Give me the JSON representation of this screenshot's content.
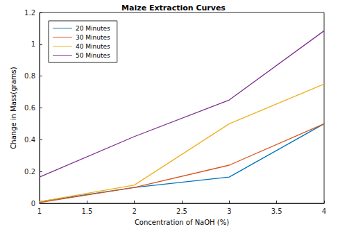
{
  "chart_data": {
    "type": "line",
    "title": "Maize Extraction Curves",
    "x_label": "Concentration of NaOH (%)",
    "y_label": "Change in Mass(grams)",
    "x": [
      1,
      2,
      3,
      4
    ],
    "series": [
      {
        "name": "20 Minutes",
        "color": "#0072BD",
        "values": [
          0.01,
          0.1,
          0.165,
          0.5
        ]
      },
      {
        "name": "30 Minutes",
        "color": "#D95319",
        "values": [
          0.005,
          0.1,
          0.24,
          0.5
        ]
      },
      {
        "name": "40 Minutes",
        "color": "#EDB120",
        "values": [
          0.01,
          0.115,
          0.5,
          0.75
        ]
      },
      {
        "name": "50 Minutes",
        "color": "#7E2F8E",
        "values": [
          0.165,
          0.42,
          0.65,
          1.085
        ]
      }
    ],
    "xlim": [
      1,
      4
    ],
    "xticks": [
      1,
      1.5,
      2,
      2.5,
      3,
      3.5,
      4
    ],
    "ylim": [
      0,
      1.2
    ],
    "yticks": [
      0,
      0.2,
      0.4,
      0.6,
      0.8,
      1,
      1.2
    ],
    "grid": false,
    "legend": "upper left"
  }
}
